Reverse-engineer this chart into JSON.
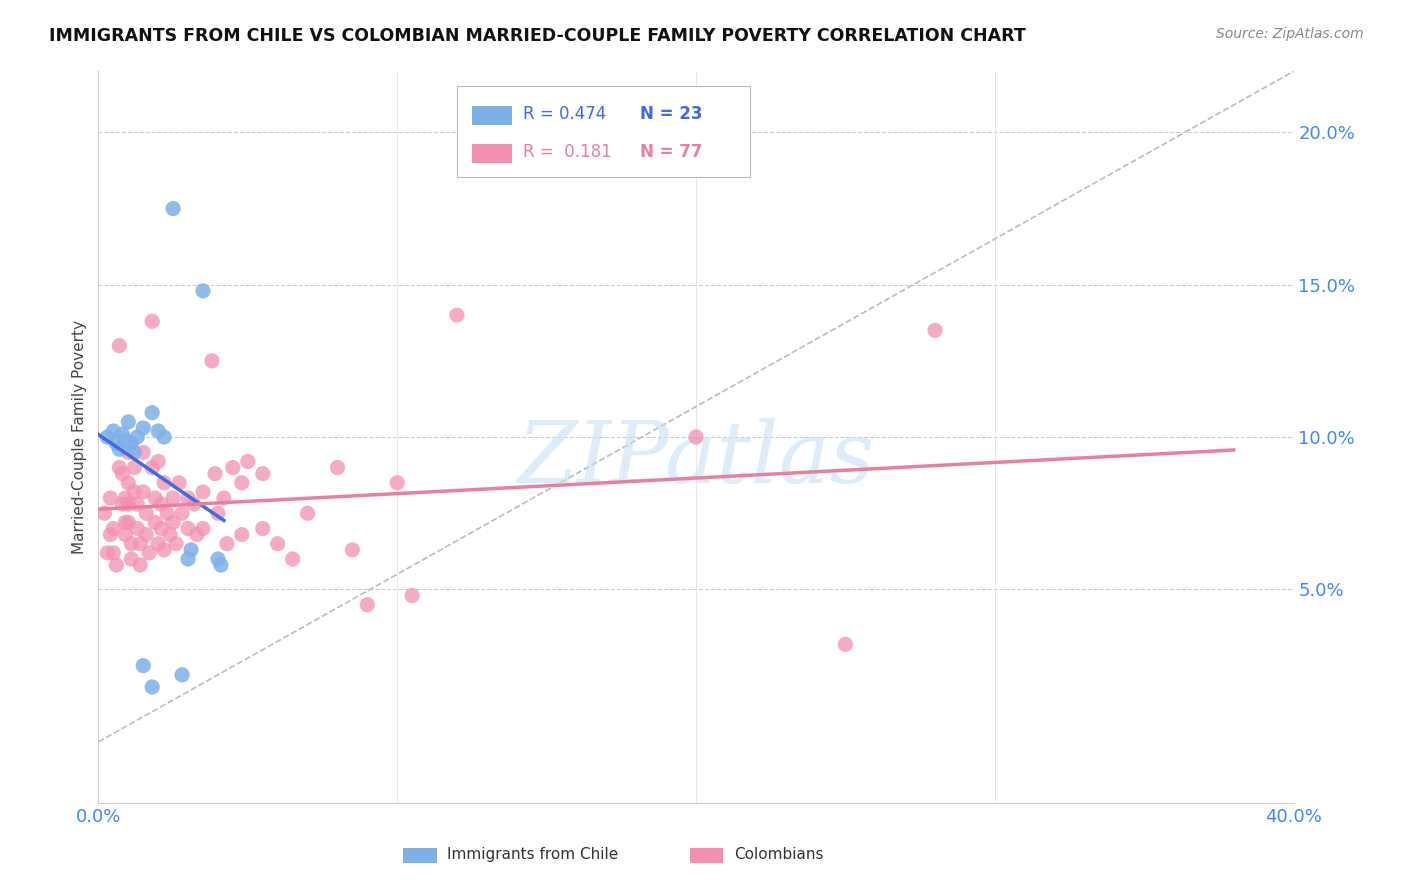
{
  "title": "IMMIGRANTS FROM CHILE VS COLOMBIAN MARRIED-COUPLE FAMILY POVERTY CORRELATION CHART",
  "source": "Source: ZipAtlas.com",
  "ylabel": "Married-Couple Family Poverty",
  "x_min": 0.0,
  "x_max": 40.0,
  "y_min": -2.0,
  "y_max": 22.0,
  "yticks": [
    5.0,
    10.0,
    15.0,
    20.0
  ],
  "ytick_labels": [
    "5.0%",
    "10.0%",
    "15.0%",
    "20.0%"
  ],
  "xtick_left_label": "0.0%",
  "xtick_right_label": "40.0%",
  "color_chile": "#7EB0E8",
  "color_colombia": "#F48FB1",
  "color_trend_chile": "#4169E1",
  "color_trend_colombia": "#E87FA0",
  "watermark_text": "ZIPatlas",
  "watermark_color": "#C8E0F8",
  "legend_r1": "R = 0.474",
  "legend_n1": "N = 23",
  "legend_r2": "R =  0.181",
  "legend_n2": "N = 77",
  "legend_color1": "#4169E1",
  "legend_color2": "#E87FA0",
  "chile_points": [
    [
      0.3,
      10.0
    ],
    [
      0.5,
      10.2
    ],
    [
      0.6,
      9.8
    ],
    [
      0.7,
      9.6
    ],
    [
      0.8,
      10.1
    ],
    [
      0.9,
      9.9
    ],
    [
      1.0,
      10.5
    ],
    [
      1.1,
      9.8
    ],
    [
      1.2,
      9.5
    ],
    [
      1.3,
      10.0
    ],
    [
      1.5,
      10.3
    ],
    [
      1.8,
      10.8
    ],
    [
      2.0,
      10.2
    ],
    [
      2.2,
      10.0
    ],
    [
      2.5,
      17.5
    ],
    [
      3.0,
      6.0
    ],
    [
      3.1,
      6.3
    ],
    [
      3.5,
      14.8
    ],
    [
      4.0,
      6.0
    ],
    [
      4.1,
      5.8
    ],
    [
      1.5,
      2.5
    ],
    [
      1.8,
      1.8
    ],
    [
      2.8,
      2.2
    ]
  ],
  "colombia_points": [
    [
      0.2,
      7.5
    ],
    [
      0.3,
      6.2
    ],
    [
      0.4,
      8.0
    ],
    [
      0.4,
      6.8
    ],
    [
      0.5,
      7.0
    ],
    [
      0.5,
      6.2
    ],
    [
      0.6,
      5.8
    ],
    [
      0.7,
      13.0
    ],
    [
      0.7,
      9.0
    ],
    [
      0.8,
      8.8
    ],
    [
      0.8,
      7.8
    ],
    [
      0.9,
      8.0
    ],
    [
      0.9,
      7.2
    ],
    [
      0.9,
      6.8
    ],
    [
      1.0,
      9.5
    ],
    [
      1.0,
      8.5
    ],
    [
      1.0,
      7.8
    ],
    [
      1.0,
      7.2
    ],
    [
      1.1,
      6.5
    ],
    [
      1.1,
      6.0
    ],
    [
      1.2,
      9.0
    ],
    [
      1.2,
      8.2
    ],
    [
      1.3,
      7.8
    ],
    [
      1.3,
      7.0
    ],
    [
      1.4,
      6.5
    ],
    [
      1.4,
      5.8
    ],
    [
      1.5,
      9.5
    ],
    [
      1.5,
      8.2
    ],
    [
      1.6,
      7.5
    ],
    [
      1.6,
      6.8
    ],
    [
      1.7,
      6.2
    ],
    [
      1.8,
      13.8
    ],
    [
      1.8,
      9.0
    ],
    [
      1.9,
      8.0
    ],
    [
      1.9,
      7.2
    ],
    [
      2.0,
      6.5
    ],
    [
      2.0,
      9.2
    ],
    [
      2.1,
      7.8
    ],
    [
      2.1,
      7.0
    ],
    [
      2.2,
      6.3
    ],
    [
      2.2,
      8.5
    ],
    [
      2.3,
      7.5
    ],
    [
      2.4,
      6.8
    ],
    [
      2.5,
      8.0
    ],
    [
      2.5,
      7.2
    ],
    [
      2.6,
      6.5
    ],
    [
      2.7,
      8.5
    ],
    [
      2.8,
      7.5
    ],
    [
      3.0,
      8.0
    ],
    [
      3.0,
      7.0
    ],
    [
      3.2,
      7.8
    ],
    [
      3.3,
      6.8
    ],
    [
      3.5,
      8.2
    ],
    [
      3.5,
      7.0
    ],
    [
      3.8,
      12.5
    ],
    [
      3.9,
      8.8
    ],
    [
      4.0,
      7.5
    ],
    [
      4.2,
      8.0
    ],
    [
      4.3,
      6.5
    ],
    [
      4.5,
      9.0
    ],
    [
      4.8,
      8.5
    ],
    [
      4.8,
      6.8
    ],
    [
      5.0,
      9.2
    ],
    [
      5.5,
      8.8
    ],
    [
      5.5,
      7.0
    ],
    [
      6.0,
      6.5
    ],
    [
      6.5,
      6.0
    ],
    [
      7.0,
      7.5
    ],
    [
      8.0,
      9.0
    ],
    [
      8.5,
      6.3
    ],
    [
      9.0,
      4.5
    ],
    [
      10.0,
      8.5
    ],
    [
      10.5,
      4.8
    ],
    [
      12.0,
      14.0
    ],
    [
      20.0,
      10.0
    ],
    [
      25.0,
      3.2
    ],
    [
      28.0,
      13.5
    ]
  ]
}
